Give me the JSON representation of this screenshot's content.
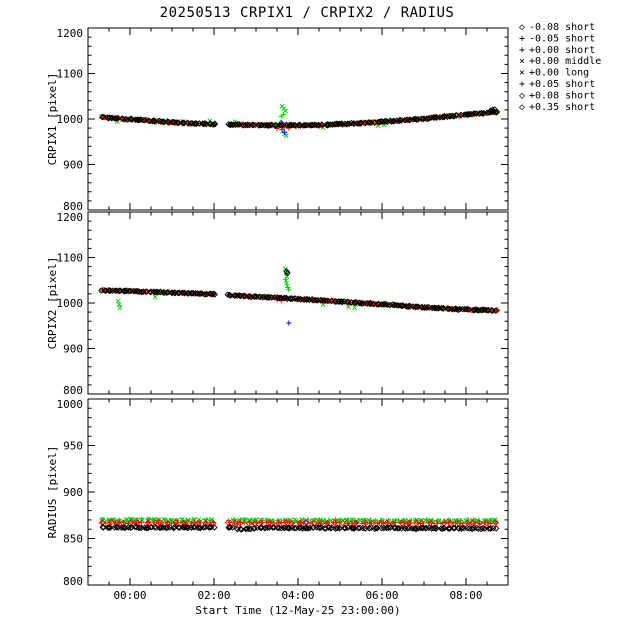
{
  "page": {
    "background": "#ffffff"
  },
  "chart_data": {
    "type": "scatter",
    "title": "20250513 CRPIX1 / CRPIX2 / RADIUS",
    "xlabel": "Start Time (12-May-25 23:00:00)",
    "x_range": [
      0,
      10
    ],
    "x_minor": 0.5,
    "x_ticks": [
      {
        "h": 1,
        "label": "00:00"
      },
      {
        "h": 3,
        "label": "02:00"
      },
      {
        "h": 5,
        "label": "04:00"
      },
      {
        "h": 7,
        "label": "06:00"
      },
      {
        "h": 9,
        "label": "08:00"
      }
    ],
    "gaps": [
      [
        3.02,
        3.32
      ]
    ],
    "legend": [
      {
        "marker": "diamond",
        "label": "-0.08 short",
        "color": "#0000ff"
      },
      {
        "marker": "plus",
        "label": "-0.05 short",
        "color": "#0000ff"
      },
      {
        "marker": "plus",
        "label": "+0.00 short",
        "color": "#00cc00"
      },
      {
        "marker": "x",
        "label": "+0.00 middle",
        "color": "#00cc00"
      },
      {
        "marker": "x",
        "label": "+0.00 long",
        "color": "#00cc00"
      },
      {
        "marker": "plus",
        "label": "+0.05 short",
        "color": "#ff0000"
      },
      {
        "marker": "diamond",
        "label": "+0.08 short",
        "color": "#ff0000"
      },
      {
        "marker": "diamond",
        "label": "+0.35 short",
        "color": "#000000"
      }
    ],
    "panels": [
      {
        "ylabel": "CRPIX1 [pixel]",
        "ylim": [
          800,
          1200
        ],
        "ymajor": 100,
        "yminor": 20,
        "ytick_labels": [
          "800",
          "900",
          "1000",
          "1100",
          "1200"
        ],
        "trends": {
          "main": [
            [
              0.35,
              1004
            ],
            [
              0.9,
              1000
            ],
            [
              1.6,
              995.5
            ],
            [
              2.3,
              991
            ],
            [
              3.0,
              988.5
            ],
            [
              3.35,
              987.5
            ],
            [
              4.2,
              986.5
            ],
            [
              5.0,
              986
            ],
            [
              5.6,
              987
            ],
            [
              6.2,
              989.5
            ],
            [
              6.8,
              992.5
            ],
            [
              7.4,
              996.5
            ],
            [
              8.0,
              1001
            ],
            [
              8.6,
              1006
            ],
            [
              9.1,
              1010.5
            ],
            [
              9.7,
              1015.5
            ]
          ]
        },
        "series": [
          {
            "name": "+0.00 long",
            "marker": "x",
            "color": "#00cc00",
            "trend": "main",
            "n": 65,
            "jitter": 3.2,
            "points": [
              [
                4.62,
                1028
              ],
              [
                4.66,
                1023
              ],
              [
                4.7,
                1018
              ],
              [
                4.64,
                974
              ],
              [
                4.68,
                968
              ],
              [
                4.72,
                964
              ],
              [
                5.6,
                981
              ],
              [
                6.9,
                985
              ],
              [
                7.05,
                987
              ]
            ]
          },
          {
            "name": "+0.00 middle",
            "marker": "x",
            "color": "#00cc00",
            "trend": "main",
            "n": 65,
            "jitter": 2.8,
            "points": [
              [
                0.7,
                994
              ],
              [
                2.9,
                996
              ],
              [
                3.5,
                994
              ]
            ]
          },
          {
            "name": "+0.00 short",
            "marker": "plus",
            "color": "#00cc00",
            "trend": "main",
            "n": 60,
            "jitter": 2.2,
            "points": [
              [
                4.6,
                1006
              ],
              [
                4.65,
                1010
              ]
            ]
          },
          {
            "name": "-0.08 short",
            "marker": "diamond",
            "color": "#0000ff",
            "points": [
              [
                4.6,
                991
              ]
            ]
          },
          {
            "name": "-0.05 short",
            "marker": "plus",
            "color": "#0000ff",
            "points": [
              [
                4.68,
                970
              ]
            ]
          },
          {
            "name": "+0.05 short",
            "marker": "plus",
            "color": "#ff0000",
            "trend": "main",
            "n": 100,
            "jitter": 1.9,
            "points": [
              [
                4.5,
                979
              ],
              [
                4.62,
                977
              ],
              [
                4.78,
                980
              ],
              [
                4.95,
                982
              ]
            ]
          },
          {
            "name": "+0.08 short",
            "marker": "diamond",
            "color": "#ff0000",
            "trend": "main",
            "n": 55,
            "jitter": 1.9
          },
          {
            "name": "+0.35 short",
            "marker": "diamond",
            "color": "#000000",
            "trend": "main",
            "n": 220,
            "jitter": 1.5,
            "points": [
              [
                9.58,
                1018
              ],
              [
                9.63,
                1020
              ],
              [
                9.68,
                1021
              ]
            ]
          }
        ]
      },
      {
        "ylabel": "CRPIX2 [pixel]",
        "ylim": [
          800,
          1200
        ],
        "ymajor": 100,
        "yminor": 20,
        "ytick_labels": [
          "800",
          "900",
          "1000",
          "1100",
          "1200"
        ],
        "trends": {
          "main": [
            [
              0.35,
              1028
            ],
            [
              1.0,
              1026
            ],
            [
              1.8,
              1023.5
            ],
            [
              2.5,
              1021
            ],
            [
              3.0,
              1019.5
            ],
            [
              3.35,
              1017
            ],
            [
              4.0,
              1014
            ],
            [
              4.6,
              1011
            ],
            [
              5.0,
              1009
            ],
            [
              5.6,
              1005.5
            ],
            [
              6.1,
              1002.5
            ],
            [
              6.6,
              999.5
            ],
            [
              7.0,
              997
            ],
            [
              7.5,
              993.5
            ],
            [
              8.0,
              990.5
            ],
            [
              8.5,
              988
            ],
            [
              9.0,
              985.5
            ],
            [
              9.7,
              983.5
            ]
          ]
        },
        "series": [
          {
            "name": "+0.00 long",
            "marker": "x",
            "color": "#00cc00",
            "trend": "main",
            "n": 65,
            "jitter": 3.2,
            "points": [
              [
                4.7,
                1075
              ],
              [
                4.72,
                1066
              ],
              [
                4.74,
                1058
              ],
              [
                6.2,
                992
              ],
              [
                6.35,
                990
              ],
              [
                5.6,
                997
              ]
            ]
          },
          {
            "name": "+0.00 middle",
            "marker": "x",
            "color": "#00cc00",
            "trend": "main",
            "n": 65,
            "jitter": 2.8,
            "points": [
              [
                0.72,
                1004
              ],
              [
                0.74,
                997
              ],
              [
                0.76,
                990
              ],
              [
                1.6,
                1013
              ]
            ]
          },
          {
            "name": "+0.00 short",
            "marker": "plus",
            "color": "#00cc00",
            "trend": "main",
            "n": 60,
            "jitter": 2.2,
            "points": [
              [
                4.7,
                1052
              ],
              [
                4.72,
                1046
              ],
              [
                4.74,
                1040
              ],
              [
                4.76,
                1034
              ],
              [
                4.78,
                1029
              ]
            ]
          },
          {
            "name": "-0.08 short",
            "marker": "diamond",
            "color": "#0000ff",
            "points": [
              [
                1.2,
                1025
              ]
            ]
          },
          {
            "name": "-0.05 short",
            "marker": "plus",
            "color": "#0000ff",
            "points": [
              [
                4.78,
                956
              ]
            ]
          },
          {
            "name": "+0.05 short",
            "marker": "plus",
            "color": "#ff0000",
            "trend": "main",
            "n": 100,
            "jitter": 1.9,
            "points": [
              [
                4.5,
                1007
              ],
              [
                4.6,
                1005
              ]
            ]
          },
          {
            "name": "+0.08 short",
            "marker": "diamond",
            "color": "#ff0000",
            "trend": "main",
            "n": 55,
            "jitter": 1.9
          },
          {
            "name": "+0.35 short",
            "marker": "diamond",
            "color": "#000000",
            "trend": "main",
            "n": 220,
            "jitter": 1.5,
            "points": [
              [
                4.73,
                1069
              ],
              [
                4.75,
                1066
              ]
            ]
          }
        ]
      },
      {
        "ylabel": "RADIUS [pixel]",
        "ylim": [
          800,
          1000
        ],
        "ymajor": 50,
        "yminor": 10,
        "ytick_labels": [
          "800",
          "850",
          "900",
          "950",
          "1000"
        ],
        "trends": {
          "green": [
            [
              0.35,
              869.8
            ],
            [
              9.7,
              869.2
            ]
          ],
          "red": [
            [
              0.35,
              867
            ],
            [
              9.7,
              866.4
            ]
          ],
          "black": [
            [
              0.35,
              862
            ],
            [
              3.4,
              861.8
            ],
            [
              3.7,
              859.5
            ],
            [
              4.1,
              861.5
            ],
            [
              9.7,
              860.8
            ]
          ]
        },
        "series": [
          {
            "name": "+0.00 long",
            "marker": "x",
            "color": "#00cc00",
            "trend": "green",
            "n": 70,
            "jitter": 1.2
          },
          {
            "name": "+0.00 middle",
            "marker": "x",
            "color": "#00cc00",
            "trend": "green",
            "n": 70,
            "jitter": 1.1
          },
          {
            "name": "+0.00 short",
            "marker": "plus",
            "color": "#00cc00",
            "trend": "green",
            "n": 70,
            "jitter": 1.1
          },
          {
            "name": "-0.08 short",
            "marker": "diamond",
            "color": "#0000ff",
            "points": [
              [
                5.2,
                867
              ]
            ]
          },
          {
            "name": "-0.05 short",
            "marker": "plus",
            "color": "#0000ff",
            "points": [
              [
                6.4,
                866.8
              ]
            ]
          },
          {
            "name": "+0.05 short",
            "marker": "plus",
            "color": "#ff0000",
            "trend": "red",
            "n": 100,
            "jitter": 0.9
          },
          {
            "name": "+0.08 short",
            "marker": "diamond",
            "color": "#ff0000",
            "trend": "red",
            "n": 55,
            "jitter": 0.9
          },
          {
            "name": "+0.35 short",
            "marker": "diamond",
            "color": "#000000",
            "trend": "black",
            "n": 220,
            "jitter": 0.9
          }
        ]
      }
    ]
  }
}
